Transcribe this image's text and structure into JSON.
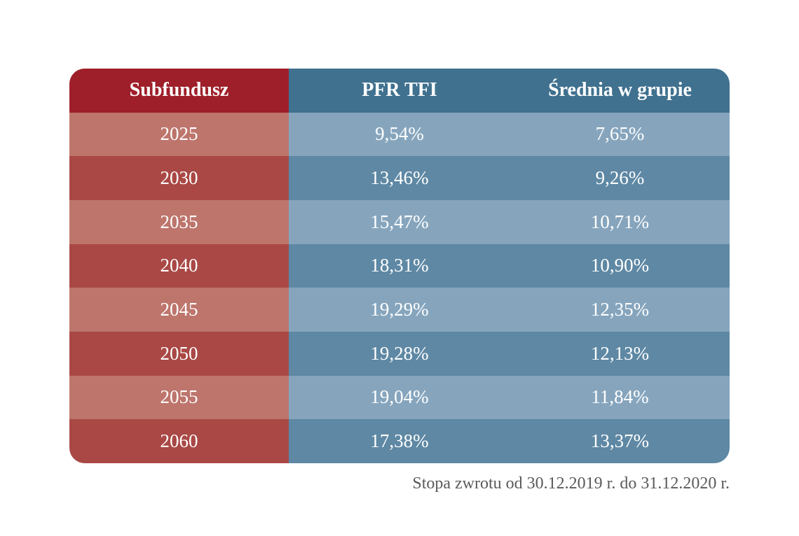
{
  "chart_data": {
    "type": "table",
    "columns": [
      "Subfundusz",
      "PFR TFI",
      "Średnia w grupie"
    ],
    "rows": [
      {
        "subfundusz": "2025",
        "pfr_tfi": "9,54%",
        "srednia": "7,65%"
      },
      {
        "subfundusz": "2030",
        "pfr_tfi": "13,46%",
        "srednia": "9,26%"
      },
      {
        "subfundusz": "2035",
        "pfr_tfi": "15,47%",
        "srednia": "10,71%"
      },
      {
        "subfundusz": "2040",
        "pfr_tfi": "18,31%",
        "srednia": "10,90%"
      },
      {
        "subfundusz": "2045",
        "pfr_tfi": "19,29%",
        "srednia": "12,35%"
      },
      {
        "subfundusz": "2050",
        "pfr_tfi": "19,28%",
        "srednia": "12,13%"
      },
      {
        "subfundusz": "2055",
        "pfr_tfi": "19,04%",
        "srednia": "11,84%"
      },
      {
        "subfundusz": "2060",
        "pfr_tfi": "17,38%",
        "srednia": "13,37%"
      }
    ],
    "footnote": "Stopa zwrotu od 30.12.2019 r. do 31.12.2020 r."
  },
  "colors": {
    "header_red": "#9e1f2a",
    "header_blue": "#40718f",
    "red_light": "#bd756c",
    "red_dark": "#a94845",
    "blue_light": "#86a5bd",
    "blue_dark": "#5e88a4"
  }
}
